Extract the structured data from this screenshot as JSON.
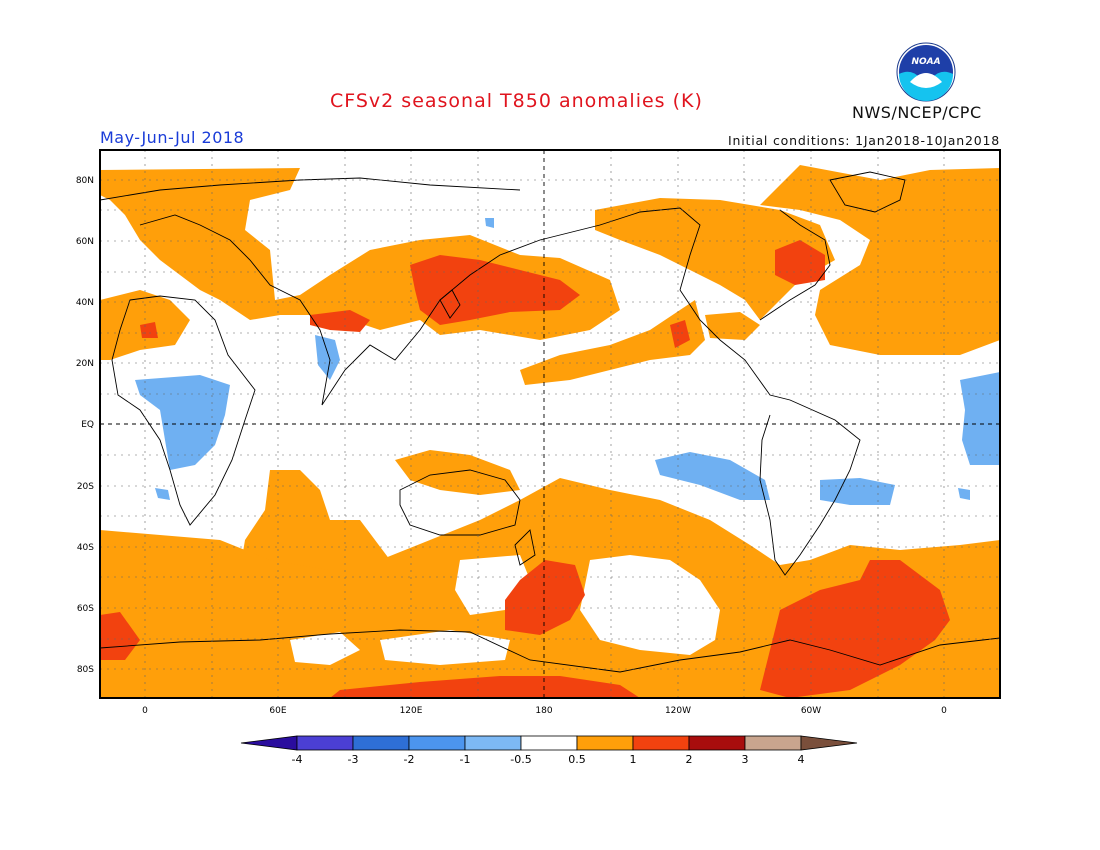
{
  "header": {
    "title": "CFSv2 seasonal T850 anomalies (K)",
    "period": "May-Jun-Jul 2018",
    "initial_conditions": "Initial conditions: 1Jan2018-10Jan2018",
    "agency": "NWS/NCEP/CPC",
    "logo_text": "NOAA"
  },
  "map": {
    "lon_labels": [
      "0",
      "60E",
      "120E",
      "180",
      "120W",
      "60W",
      "0"
    ],
    "lat_labels": [
      "80N",
      "60N",
      "40N",
      "20N",
      "EQ",
      "20S",
      "40S",
      "60S",
      "80S"
    ]
  },
  "colorbar": {
    "labels": [
      "-4",
      "-3",
      "-2",
      "-1",
      "-0.5",
      "0.5",
      "1",
      "2",
      "3",
      "4"
    ],
    "colors": [
      "#2a0d9e",
      "#4b3fd4",
      "#2e6fd6",
      "#4c95ee",
      "#7db9f5",
      "#ffffff",
      "#ff9f0a",
      "#f2420f",
      "#a80d0d",
      "#c9a58e",
      "#7a4f3b"
    ]
  },
  "colors": {
    "anom_05_1": "#ff9f0a",
    "anom_1_2": "#f2420f",
    "anom_neg": "#6fb0f2",
    "title": "#e0141e",
    "period": "#1a3cd8"
  }
}
